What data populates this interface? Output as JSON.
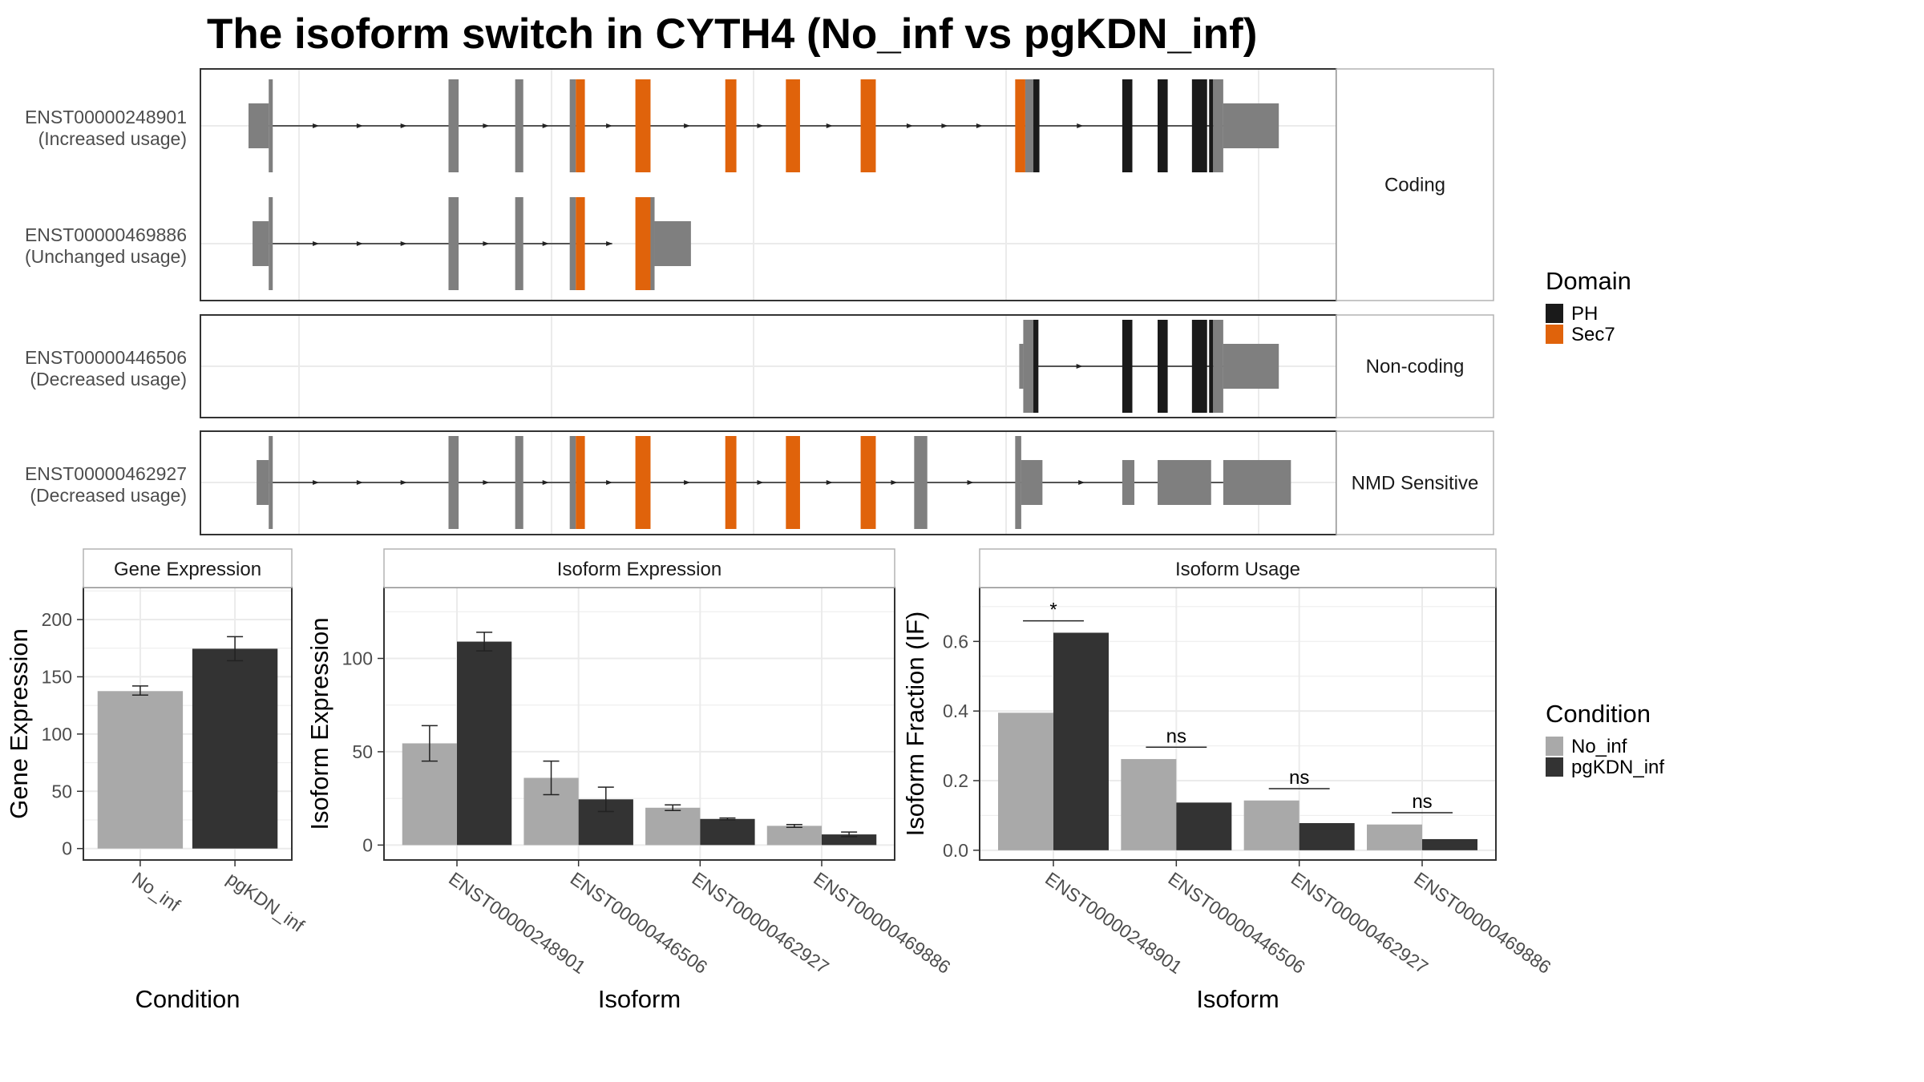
{
  "title": "The isoform switch in CYTH4 (No_inf vs pgKDN_inf)",
  "colors": {
    "PH": "#1a1a1a",
    "Sec7": "#e0630b",
    "other": "#7f7f7f",
    "No_inf": "#a9a9a9",
    "pgKDN_inf": "#333333",
    "grid": "#ebebeb",
    "panel_border": "#333333",
    "strip_border": "#b3b3b3"
  },
  "transcript_plot": {
    "x_range": [
      0,
      1
    ],
    "x_grid": [
      0.05,
      0.3,
      0.5,
      0.75,
      1.0
    ],
    "legend": {
      "title": "Domain",
      "items": [
        {
          "label": "PH",
          "color": "#1a1a1a"
        },
        {
          "label": "Sec7",
          "color": "#e0630b"
        }
      ]
    },
    "groups": [
      {
        "name": "Coding",
        "transcripts": [
          {
            "id": "ENST00000248901",
            "usage": "(Increased usage)",
            "line": [
              0.02,
              0.965
            ],
            "exons": [
              [
                0.0,
                0.02,
                "u"
              ],
              [
                0.02,
                0.024,
                "c"
              ],
              [
                0.198,
                0.208,
                "c"
              ],
              [
                0.264,
                0.272,
                "c"
              ],
              [
                0.318,
                0.324,
                "c"
              ],
              [
                0.324,
                0.333,
                "Sec7"
              ],
              [
                0.383,
                0.398,
                "Sec7"
              ],
              [
                0.472,
                0.483,
                "Sec7"
              ],
              [
                0.532,
                0.546,
                "Sec7"
              ],
              [
                0.606,
                0.621,
                "Sec7"
              ],
              [
                0.759,
                0.769,
                "Sec7"
              ],
              [
                0.769,
                0.777,
                "c"
              ],
              [
                0.777,
                0.783,
                "PH"
              ],
              [
                0.865,
                0.875,
                "PH"
              ],
              [
                0.9,
                0.91,
                "PH"
              ],
              [
                0.934,
                0.949,
                "PH"
              ],
              [
                0.951,
                0.955,
                "PH"
              ],
              [
                0.955,
                0.965,
                "c"
              ],
              [
                0.965,
                1.02,
                "u"
              ]
            ]
          },
          {
            "id": "ENST00000469886",
            "usage": "(Unchanged usage)",
            "line": [
              0.02,
              0.36
            ],
            "exons": [
              [
                0.004,
                0.02,
                "u"
              ],
              [
                0.02,
                0.024,
                "c"
              ],
              [
                0.198,
                0.208,
                "c"
              ],
              [
                0.264,
                0.272,
                "c"
              ],
              [
                0.318,
                0.324,
                "c"
              ],
              [
                0.324,
                0.333,
                "Sec7"
              ],
              [
                0.383,
                0.398,
                "Sec7"
              ],
              [
                0.398,
                0.402,
                "c"
              ],
              [
                0.402,
                0.438,
                "u"
              ]
            ]
          }
        ]
      },
      {
        "name": "Non-coding",
        "transcripts": [
          {
            "id": "ENST00000446506",
            "usage": "(Decreased usage)",
            "line": [
              0.777,
              0.965
            ],
            "exons": [
              [
                0.763,
                0.767,
                "u"
              ],
              [
                0.767,
                0.777,
                "c"
              ],
              [
                0.777,
                0.782,
                "PH"
              ],
              [
                0.865,
                0.875,
                "PH"
              ],
              [
                0.9,
                0.91,
                "PH"
              ],
              [
                0.934,
                0.949,
                "PH"
              ],
              [
                0.951,
                0.955,
                "PH"
              ],
              [
                0.955,
                0.965,
                "c"
              ],
              [
                0.965,
                1.02,
                "u"
              ]
            ]
          }
        ]
      },
      {
        "name": "NMD Sensitive",
        "transcripts": [
          {
            "id": "ENST00000462927",
            "usage": "(Decreased usage)",
            "line": [
              0.02,
              0.965
            ],
            "exons": [
              [
                0.008,
                0.02,
                "u"
              ],
              [
                0.02,
                0.024,
                "c"
              ],
              [
                0.198,
                0.208,
                "c"
              ],
              [
                0.264,
                0.272,
                "c"
              ],
              [
                0.318,
                0.324,
                "c"
              ],
              [
                0.324,
                0.333,
                "Sec7"
              ],
              [
                0.383,
                0.398,
                "Sec7"
              ],
              [
                0.472,
                0.483,
                "Sec7"
              ],
              [
                0.532,
                0.546,
                "Sec7"
              ],
              [
                0.606,
                0.621,
                "Sec7"
              ],
              [
                0.659,
                0.672,
                "c"
              ],
              [
                0.759,
                0.765,
                "c"
              ],
              [
                0.765,
                0.786,
                "u"
              ],
              [
                0.865,
                0.877,
                "u"
              ],
              [
                0.9,
                0.953,
                "u"
              ],
              [
                0.965,
                1.032,
                "u"
              ]
            ]
          }
        ]
      }
    ]
  },
  "chart_data": [
    {
      "type": "bar",
      "title": "Gene Expression",
      "xlabel": "Condition",
      "ylabel": "Gene Expression",
      "categories": [
        "No_inf",
        "pgKDN_inf"
      ],
      "values": [
        137.5,
        174.5
      ],
      "error": [
        [
          134,
          142
        ],
        [
          164,
          185
        ]
      ],
      "ylim": [
        -10,
        228
      ],
      "yticks": [
        0,
        50,
        100,
        150,
        200
      ],
      "grid": true
    },
    {
      "type": "bar",
      "title": "Isoform Expression",
      "xlabel": "Isoform",
      "ylabel": "Isoform Expression",
      "categories": [
        "ENST00000248901",
        "ENST00000446506",
        "ENST00000462927",
        "ENST00000469886"
      ],
      "series": [
        {
          "name": "No_inf",
          "values": [
            54.5,
            36.0,
            20.0,
            10.3
          ],
          "error": [
            [
              45,
              64
            ],
            [
              27,
              45
            ],
            [
              18.5,
              21.5
            ],
            [
              9.5,
              11
            ]
          ]
        },
        {
          "name": "pgKDN_inf",
          "values": [
            109.0,
            24.5,
            14.0,
            5.7
          ],
          "error": [
            [
              104,
              114
            ],
            [
              18,
              31
            ],
            [
              13.5,
              14.5
            ],
            [
              4.5,
              7
            ]
          ]
        }
      ],
      "ylim": [
        -8,
        138
      ],
      "yticks": [
        0,
        50,
        100
      ],
      "grid": true
    },
    {
      "type": "bar",
      "title": "Isoform Usage",
      "xlabel": "Isoform",
      "ylabel": "Isoform Fraction (IF)",
      "categories": [
        "ENST00000248901",
        "ENST00000446506",
        "ENST00000462927",
        "ENST00000469886"
      ],
      "series": [
        {
          "name": "No_inf",
          "values": [
            0.395,
            0.262,
            0.143,
            0.074
          ]
        },
        {
          "name": "pgKDN_inf",
          "values": [
            0.625,
            0.137,
            0.078,
            0.032
          ]
        }
      ],
      "annotations": [
        {
          "category": "ENST00000248901",
          "label": "*",
          "y": 0.659
        },
        {
          "category": "ENST00000446506",
          "label": "ns",
          "y": 0.296
        },
        {
          "category": "ENST00000462927",
          "label": "ns",
          "y": 0.177
        },
        {
          "category": "ENST00000469886",
          "label": "ns",
          "y": 0.108
        }
      ],
      "ylim": [
        -0.028,
        0.755
      ],
      "yticks": [
        0.0,
        0.2,
        0.4,
        0.6
      ],
      "ytick_labels": [
        "0.0",
        "0.2",
        "0.4",
        "0.6"
      ],
      "grid": true
    }
  ],
  "condition_legend": {
    "title": "Condition",
    "items": [
      {
        "label": "No_inf",
        "color": "#a9a9a9"
      },
      {
        "label": "pgKDN_inf",
        "color": "#333333"
      }
    ]
  }
}
